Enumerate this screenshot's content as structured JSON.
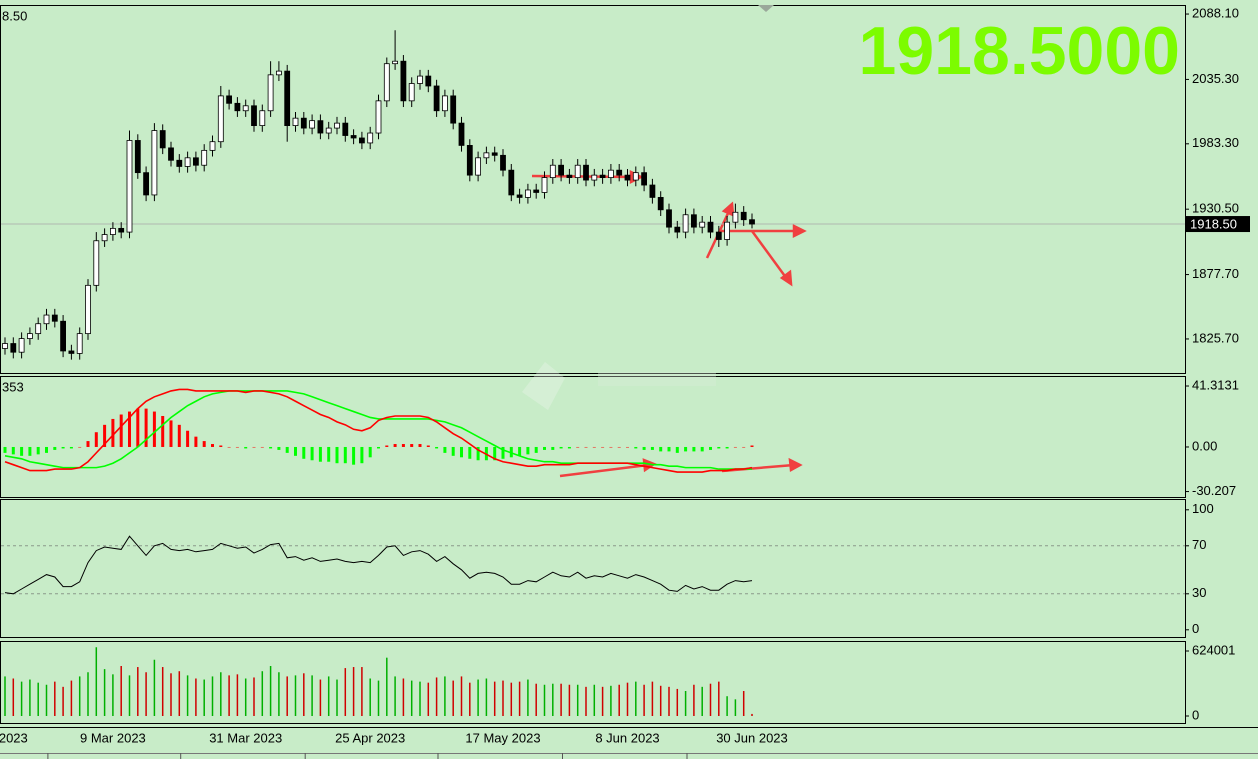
{
  "chart_data": {
    "type": "candlestick",
    "price": {
      "label": "8.50",
      "big_price": "1918.5000",
      "current_price": {
        "value": 1918.5,
        "label": "1918.50"
      },
      "ylim": [
        1798.2,
        2095.4
      ],
      "yticks": [
        {
          "value": 2088.1,
          "label": "2088.10"
        },
        {
          "value": 2035.3,
          "label": "2035.30"
        },
        {
          "value": 1983.3,
          "label": "1983.30"
        },
        {
          "value": 1930.5,
          "label": "1930.50"
        },
        {
          "value": 1877.7,
          "label": "1877.70"
        },
        {
          "value": 1825.7,
          "label": "1825.70"
        }
      ],
      "up_color": "#ffffff",
      "down_color": "#000000",
      "candles": {
        "open": [
          1818,
          1822,
          1815,
          1826,
          1830,
          1838,
          1845,
          1840,
          1816,
          1814,
          1830,
          1869,
          1905,
          1910,
          1915,
          1912,
          1986,
          1960,
          1942,
          1994,
          1980,
          1970,
          1965,
          1972,
          1966,
          1978,
          1985,
          2022,
          2016,
          2010,
          2014,
          1998,
          2010,
          2039,
          2042,
          1998,
          2004,
          1996,
          2002,
          1992,
          1996,
          2000,
          1990,
          1988,
          1984,
          1992,
          2018,
          2048,
          2050,
          2018,
          2032,
          2038,
          2030,
          2010,
          2022,
          2000,
          1982,
          1958,
          1972,
          1976,
          1974,
          1962,
          1942,
          1940,
          1946,
          1944,
          1956,
          1966,
          1958,
          1956,
          1966,
          1954,
          1958,
          1956,
          1962,
          1958,
          1954,
          1960,
          1950,
          1940,
          1930,
          1916,
          1912,
          1926,
          1916,
          1920,
          1912,
          1906,
          1920,
          1928,
          1922
        ],
        "high": [
          1827,
          1827,
          1831,
          1835,
          1843,
          1850,
          1850,
          1845,
          1821,
          1835,
          1874,
          1912,
          1915,
          1920,
          1920,
          1994,
          1991,
          1965,
          2000,
          1999,
          1985,
          1975,
          1977,
          1977,
          1983,
          1990,
          2030,
          2027,
          2021,
          2019,
          2019,
          2015,
          2050,
          2050,
          2047,
          2009,
          2009,
          2007,
          2007,
          2001,
          2005,
          2005,
          1995,
          1993,
          1997,
          2023,
          2053,
          2075,
          2055,
          2037,
          2043,
          2043,
          2035,
          2027,
          2027,
          2005,
          1987,
          1977,
          1981,
          1981,
          1979,
          1967,
          1947,
          1951,
          1951,
          1961,
          1971,
          1971,
          1963,
          1971,
          1971,
          1963,
          1963,
          1967,
          1967,
          1963,
          1965,
          1965,
          1955,
          1945,
          1935,
          1921,
          1931,
          1931,
          1925,
          1925,
          1917,
          1925,
          1935,
          1933,
          1927
        ],
        "low": [
          1813,
          1810,
          1810,
          1821,
          1825,
          1833,
          1835,
          1811,
          1809,
          1809,
          1825,
          1864,
          1900,
          1905,
          1907,
          1907,
          1955,
          1937,
          1937,
          1975,
          1965,
          1960,
          1960,
          1961,
          1961,
          1973,
          1980,
          2011,
          2005,
          2005,
          1993,
          1993,
          2005,
          2034,
          1985,
          1993,
          1991,
          1991,
          1987,
          1987,
          1991,
          1985,
          1983,
          1979,
          1979,
          1987,
          2013,
          2043,
          2013,
          2013,
          2027,
          2025,
          2005,
          2005,
          1995,
          1977,
          1953,
          1953,
          1967,
          1969,
          1957,
          1937,
          1935,
          1935,
          1939,
          1939,
          1951,
          1953,
          1951,
          1951,
          1949,
          1949,
          1951,
          1951,
          1953,
          1949,
          1949,
          1945,
          1935,
          1925,
          1911,
          1907,
          1907,
          1911,
          1911,
          1907,
          1900,
          1901,
          1915,
          1917,
          1915
        ],
        "close": [
          1822,
          1815,
          1826,
          1830,
          1838,
          1845,
          1840,
          1816,
          1814,
          1830,
          1869,
          1905,
          1910,
          1915,
          1912,
          1986,
          1960,
          1942,
          1994,
          1980,
          1970,
          1965,
          1972,
          1966,
          1978,
          1985,
          2022,
          2016,
          2010,
          2014,
          1998,
          2010,
          2039,
          2042,
          1998,
          2004,
          1996,
          2002,
          1992,
          1996,
          2000,
          1990,
          1988,
          1984,
          1992,
          2018,
          2048,
          2050,
          2018,
          2032,
          2038,
          2030,
          2010,
          2022,
          2000,
          1982,
          1958,
          1972,
          1976,
          1974,
          1962,
          1942,
          1940,
          1946,
          1944,
          1956,
          1966,
          1958,
          1956,
          1966,
          1954,
          1958,
          1956,
          1962,
          1958,
          1954,
          1960,
          1950,
          1940,
          1930,
          1916,
          1912,
          1926,
          1916,
          1920,
          1912,
          1906,
          1920,
          1928,
          1922,
          1918.5
        ]
      }
    },
    "macd": {
      "label": "353",
      "ylim": [
        -33.9,
        48.1
      ],
      "yticks": [
        41.3131,
        {
          "value": 0,
          "label": "0.00"
        },
        -30.207
      ],
      "pos_color": "#ff0000",
      "neg_color": "#00ff00",
      "macd_color": "#ff0000",
      "signal_color": "#00ff00",
      "histogram": [
        -4,
        -5,
        -6,
        -6,
        -5,
        -4,
        -2,
        -1,
        -1,
        0,
        4,
        10,
        15,
        19,
        22,
        24,
        26,
        26,
        24,
        21,
        18,
        15,
        11,
        7,
        4,
        2,
        1,
        0,
        0,
        -1,
        0,
        0,
        -1,
        -2,
        -4,
        -6,
        -8,
        -9,
        -10,
        -10,
        -11,
        -11,
        -12,
        -11,
        -7,
        -1,
        1,
        2,
        2,
        2,
        2,
        1,
        -1,
        -4,
        -6,
        -7,
        -8,
        -9,
        -9,
        -9,
        -8,
        -7,
        -6,
        -5,
        -4,
        -2,
        -2,
        -1,
        -1,
        0,
        0,
        0,
        0,
        0,
        0,
        0,
        -1,
        -2,
        -2,
        -3,
        -3,
        -4,
        -3,
        -3,
        -3,
        -2,
        -1,
        -1,
        0,
        0,
        1
      ],
      "macd_line": [
        -10,
        -12,
        -14,
        -16,
        -16,
        -16,
        -15,
        -15,
        -15,
        -14,
        -10,
        -4,
        2,
        8,
        14,
        20,
        26,
        31,
        34,
        36,
        38,
        39,
        39,
        38,
        38,
        38,
        38,
        38,
        38,
        37,
        38,
        38,
        37,
        36,
        34,
        31,
        28,
        25,
        22,
        20,
        17,
        15,
        12,
        11,
        13,
        18,
        20,
        21,
        21,
        21,
        21,
        20,
        17,
        13,
        9,
        6,
        2,
        -2,
        -5,
        -8,
        -10,
        -11,
        -12,
        -13,
        -13,
        -12,
        -12,
        -12,
        -12,
        -11,
        -11,
        -11,
        -11,
        -11,
        -11,
        -11,
        -12,
        -13,
        -14,
        -15,
        -16,
        -17,
        -17,
        -17,
        -17,
        -16,
        -16,
        -16,
        -15,
        -15,
        -14
      ],
      "signal_line": [
        -6,
        -7,
        -8,
        -10,
        -11,
        -12,
        -13,
        -14,
        -14,
        -14,
        -14,
        -14,
        -13,
        -11,
        -8,
        -4,
        0,
        5,
        10,
        15,
        20,
        24,
        28,
        31,
        34,
        36,
        37,
        38,
        38,
        38,
        38,
        38,
        38,
        38,
        38,
        37,
        36,
        34,
        32,
        30,
        28,
        26,
        24,
        22,
        20,
        19,
        19,
        19,
        19,
        19,
        19,
        19,
        18,
        17,
        15,
        13,
        10,
        7,
        4,
        1,
        -2,
        -4,
        -6,
        -8,
        -9,
        -10,
        -10,
        -11,
        -11,
        -11,
        -11,
        -11,
        -11,
        -11,
        -11,
        -11,
        -11,
        -11,
        -12,
        -12,
        -13,
        -13,
        -14,
        -14,
        -14,
        -14,
        -15,
        -15,
        -15,
        -15,
        -15
      ]
    },
    "rsi": {
      "ylim": [
        -6,
        109
      ],
      "yticks": [
        100,
        70,
        30,
        0
      ],
      "levels": [
        70,
        30
      ],
      "color": "#000000",
      "values": [
        31,
        30,
        34,
        38,
        42,
        46,
        44,
        36,
        36,
        40,
        56,
        66,
        69,
        68,
        67,
        78,
        70,
        62,
        70,
        72,
        67,
        66,
        67,
        65,
        66,
        67,
        72,
        70,
        68,
        69,
        64,
        67,
        71,
        72,
        60,
        61,
        58,
        60,
        57,
        58,
        59,
        57,
        56,
        57,
        56,
        62,
        69,
        70,
        62,
        65,
        66,
        63,
        57,
        61,
        55,
        50,
        43,
        47,
        48,
        47,
        44,
        38,
        38,
        41,
        40,
        44,
        48,
        45,
        44,
        48,
        43,
        45,
        44,
        47,
        45,
        43,
        46,
        44,
        41,
        38,
        33,
        32,
        37,
        34,
        36,
        33,
        33,
        38,
        41,
        40,
        41
      ]
    },
    "volume": {
      "ylim": [
        -67200,
        720000
      ],
      "yticks": [
        624001,
        0
      ],
      "up_color": "#00b000",
      "down_color": "#d00000",
      "values": [
        380000,
        360000,
        330000,
        350000,
        320000,
        300000,
        330000,
        280000,
        340000,
        380000,
        420000,
        660000,
        450000,
        400000,
        480000,
        390000,
        470000,
        420000,
        540000,
        470000,
        410000,
        430000,
        390000,
        360000,
        350000,
        380000,
        420000,
        390000,
        400000,
        360000,
        370000,
        430000,
        480000,
        420000,
        380000,
        390000,
        410000,
        390000,
        350000,
        380000,
        350000,
        460000,
        470000,
        470000,
        360000,
        340000,
        560000,
        380000,
        360000,
        340000,
        330000,
        320000,
        370000,
        380000,
        340000,
        380000,
        320000,
        350000,
        360000,
        330000,
        340000,
        320000,
        330000,
        350000,
        310000,
        300000,
        310000,
        310000,
        300000,
        300000,
        280000,
        300000,
        280000,
        290000,
        300000,
        320000,
        330000,
        300000,
        330000,
        290000,
        280000,
        260000,
        240000,
        300000,
        280000,
        310000,
        330000,
        190000,
        160000,
        240000,
        20000
      ]
    },
    "categories": [
      null,
      "2023",
      null,
      null,
      null,
      null,
      null,
      null,
      null,
      null,
      null,
      null,
      null,
      "9 Mar 2023",
      null,
      null,
      null,
      null,
      null,
      null,
      null,
      null,
      null,
      null,
      null,
      null,
      null,
      null,
      null,
      "31 Mar 2023",
      null,
      null,
      null,
      null,
      null,
      null,
      null,
      null,
      null,
      null,
      null,
      null,
      null,
      null,
      "25 Apr 2023",
      null,
      null,
      null,
      null,
      null,
      null,
      null,
      null,
      null,
      null,
      null,
      null,
      null,
      null,
      null,
      "17 May 2023",
      null,
      null,
      null,
      null,
      null,
      null,
      null,
      null,
      null,
      null,
      null,
      null,
      null,
      null,
      "8 Jun 2023",
      null,
      null,
      null,
      null,
      null,
      null,
      null,
      null,
      null,
      null,
      null,
      null,
      null,
      null,
      "30 Jun 2023"
    ]
  }
}
